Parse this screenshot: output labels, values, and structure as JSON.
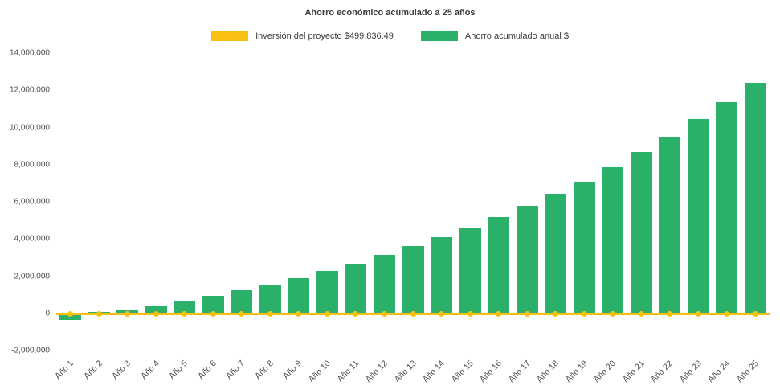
{
  "chart_data": {
    "type": "bar",
    "title": "Ahorro económico acumulado a 25 años",
    "categories": [
      "Año 1",
      "Año 2",
      "Año 3",
      "Año 4",
      "Año 5",
      "Año 6",
      "Año 7",
      "Año 8",
      "Año 9",
      "Año 10",
      "Año 11",
      "Año 12",
      "Año 13",
      "Año 14",
      "Año 15",
      "Año 16",
      "Año 17",
      "Año 18",
      "Año 19",
      "Año 20",
      "Año 21",
      "Año 22",
      "Año 23",
      "Año 24",
      "Año 25"
    ],
    "series": [
      {
        "name": "Inversión del proyecto $499,836.49",
        "type": "line",
        "color": "#f8c013",
        "values": [
          0,
          0,
          0,
          0,
          0,
          0,
          0,
          0,
          0,
          0,
          0,
          0,
          0,
          0,
          0,
          0,
          0,
          0,
          0,
          0,
          0,
          0,
          0,
          0,
          0
        ]
      },
      {
        "name": "Ahorro acumulado anual $",
        "type": "bar",
        "color": "#2bb06a",
        "values": [
          -350000,
          80000,
          200000,
          420000,
          680000,
          950000,
          1250000,
          1570000,
          1900000,
          2280000,
          2700000,
          3150000,
          3620000,
          4100000,
          4620000,
          5180000,
          5780000,
          6430000,
          7100000,
          7870000,
          8690000,
          9500000,
          10450000,
          11370000,
          12400000
        ]
      }
    ],
    "xlabel": "",
    "ylabel": "",
    "ylim": [
      -2000000,
      14000000
    ],
    "ytick_step": 2000000,
    "ytick_labels": [
      "-2,000,000",
      "0",
      "2,000,000",
      "4,000,000",
      "6,000,000",
      "8,000,000",
      "10,000,000",
      "12,000,000",
      "14,000,000"
    ],
    "grid": false,
    "legend_position": "top"
  }
}
